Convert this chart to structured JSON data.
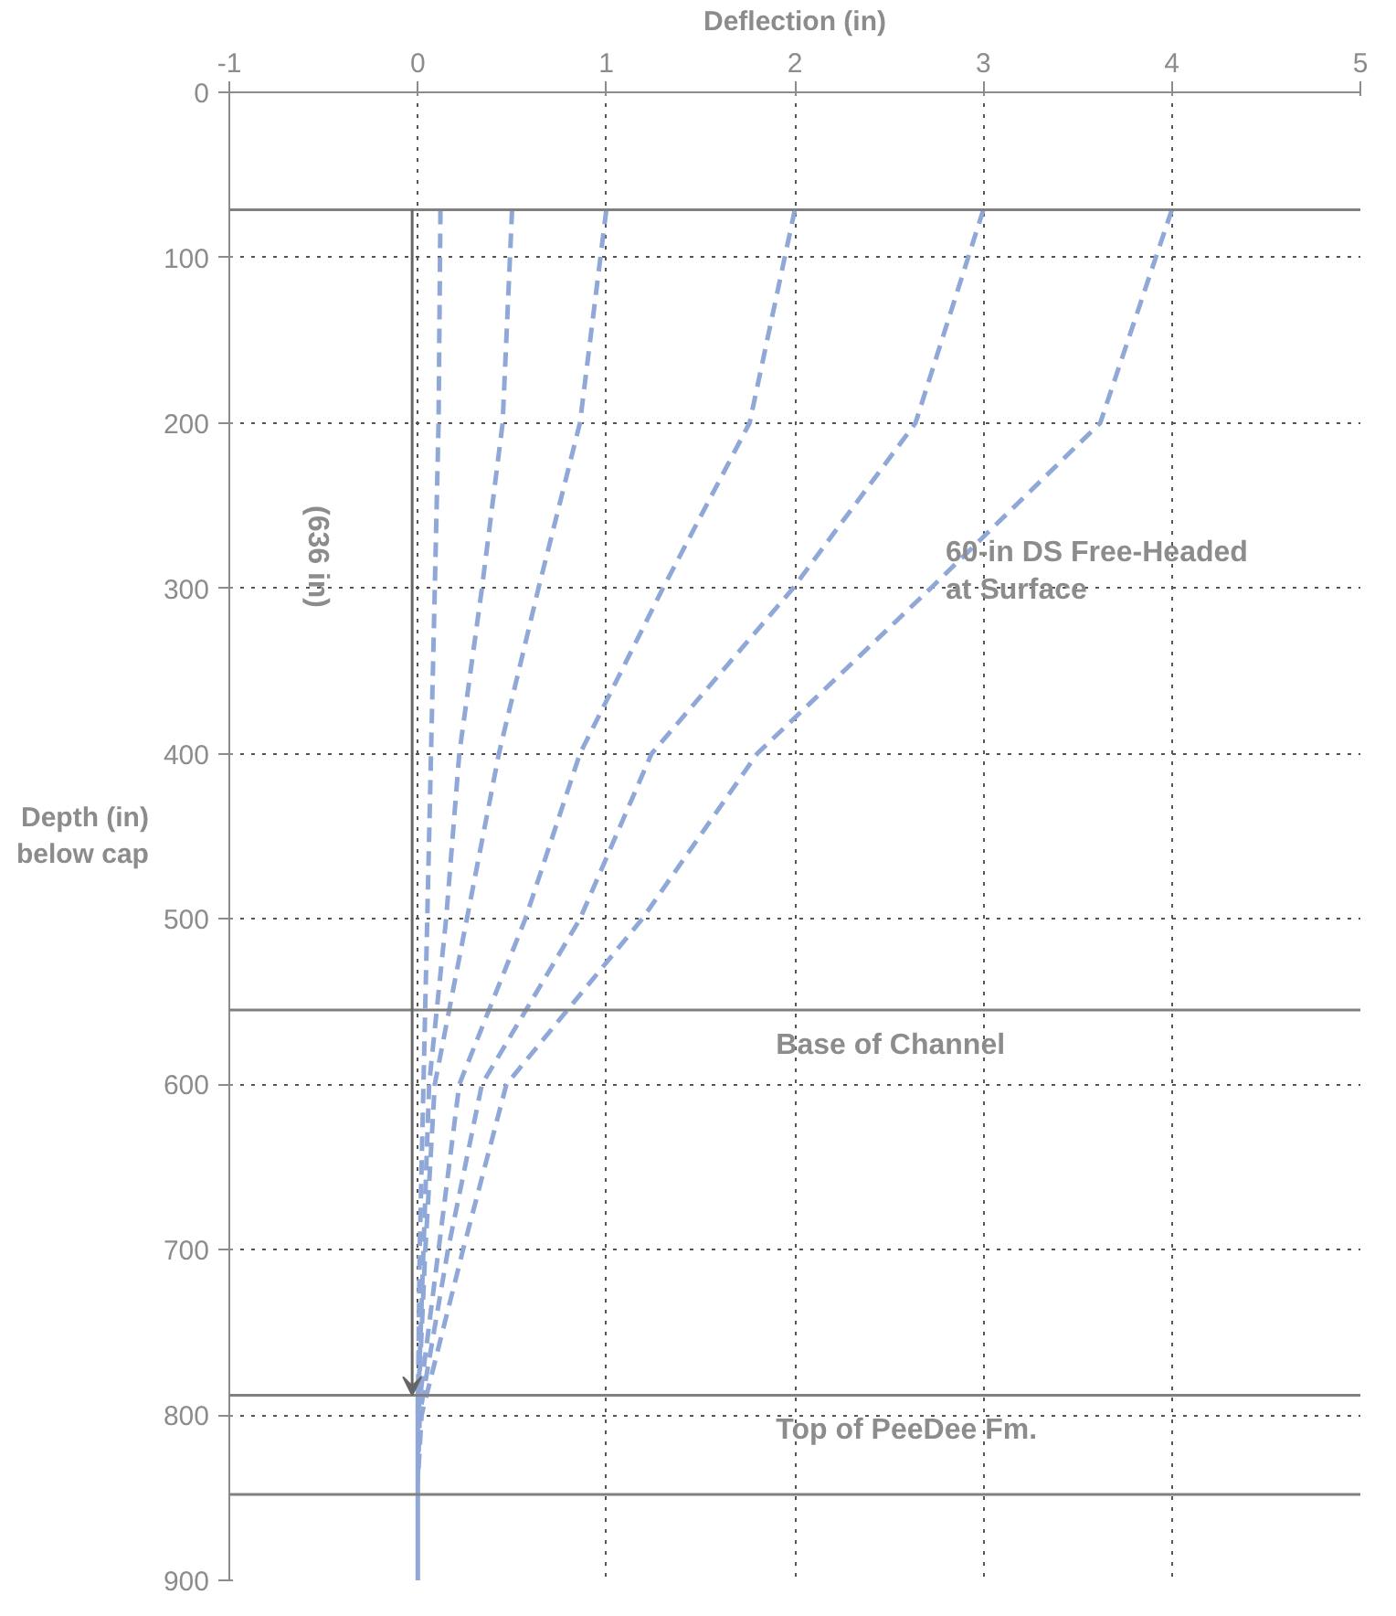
{
  "chart_data": {
    "type": "line",
    "xlabel": "Deflection (in)",
    "ylabel": "Depth (in)\nbelow cap",
    "xlim": [
      -1,
      5
    ],
    "xticks": [
      -1,
      0,
      1,
      2,
      3,
      4,
      5
    ],
    "ylim": [
      900,
      0
    ],
    "yticks": [
      0,
      100,
      200,
      300,
      400,
      500,
      600,
      700,
      800,
      900
    ],
    "grid": true,
    "line_style": "dashed",
    "marker": "none",
    "series": [
      {
        "color": "#8fa8d8",
        "x": [
          0.12,
          0.11,
          0.09,
          0.07,
          0.05,
          0.03,
          0.01,
          0
        ],
        "values": [
          71,
          200,
          300,
          400,
          500,
          600,
          700,
          800
        ]
      },
      {
        "color": "#8fa8d8",
        "x": [
          0.5,
          0.45,
          0.34,
          0.22,
          0.15,
          0.06,
          0.03,
          0
        ],
        "values": [
          71,
          200,
          300,
          400,
          500,
          600,
          700,
          800
        ]
      },
      {
        "color": "#8fa8d8",
        "x": [
          1.0,
          0.86,
          0.64,
          0.43,
          0.26,
          0.09,
          0.04,
          0
        ],
        "values": [
          71,
          200,
          300,
          400,
          500,
          600,
          700,
          800
        ]
      },
      {
        "color": "#8fa8d8",
        "x": [
          2.0,
          1.76,
          1.3,
          0.86,
          0.57,
          0.22,
          0.11,
          0
        ],
        "values": [
          71,
          200,
          300,
          400,
          500,
          600,
          700,
          800
        ]
      },
      {
        "color": "#8fa8d8",
        "x": [
          3.0,
          2.64,
          1.99,
          1.24,
          0.86,
          0.34,
          0.16,
          0.01,
          0
        ],
        "values": [
          71,
          200,
          300,
          400,
          500,
          600,
          700,
          800,
          840
        ]
      },
      {
        "color": "#8fa8d8",
        "x": [
          4.0,
          3.62,
          2.72,
          1.8,
          1.19,
          0.47,
          0.24,
          0.02,
          0
        ],
        "values": [
          71,
          200,
          300,
          400,
          500,
          600,
          700,
          800,
          840
        ]
      },
      {
        "color": "#8fa8d8",
        "line_style": "solid",
        "x": [
          0,
          0
        ],
        "values": [
          780,
          900
        ]
      }
    ],
    "ref_lines": [
      {
        "axis": "y",
        "value": 71,
        "label": null,
        "color": "#808080"
      },
      {
        "axis": "y",
        "value": 555,
        "label": "Base of Channel",
        "color": "#808080"
      },
      {
        "axis": "y",
        "value": 788,
        "label": "Top of PeeDee Fm.",
        "color": "#808080"
      },
      {
        "axis": "y",
        "value": 848,
        "label": null,
        "color": "#808080"
      }
    ],
    "annotations": [
      {
        "text": "60-in DS Free-Headed\nat Surface",
        "x": 2.8,
        "y": 290
      },
      "(636 in)"
    ]
  }
}
